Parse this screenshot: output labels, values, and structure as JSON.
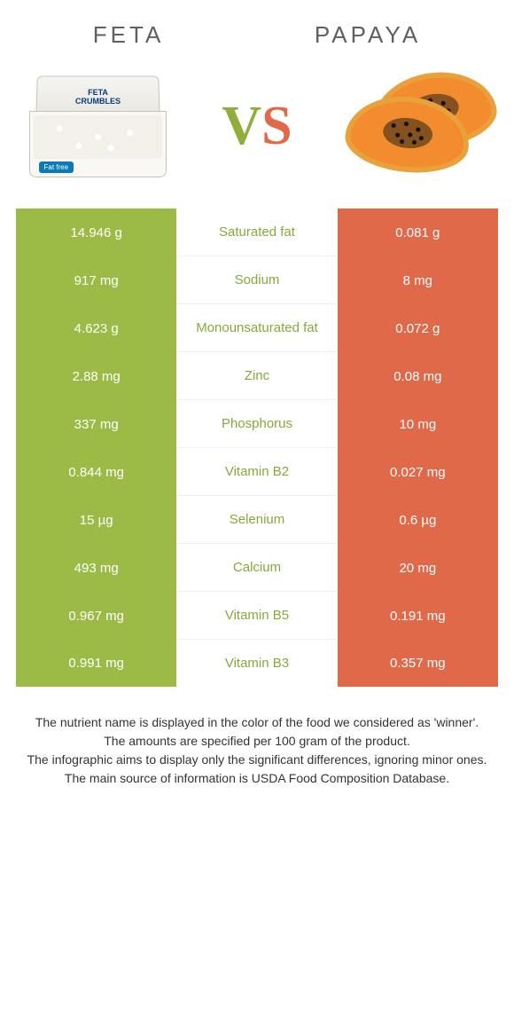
{
  "colors": {
    "left_bg": "#9bbb46",
    "right_bg": "#e0694a",
    "left_text": "#ffffff",
    "right_text": "#ffffff",
    "nutrient_left_color": "#87a93a",
    "nutrient_right_color": "#e0694a",
    "vs_v": "#8fae3b",
    "vs_s": "#e0694a",
    "header_text": "#606060",
    "footer_text": "#333333"
  },
  "header": {
    "left": "FETA",
    "right": "PAPAYA",
    "vs_v": "V",
    "vs_s": "S"
  },
  "rows": [
    {
      "left": "14.946 g",
      "nutrient": "Saturated fat",
      "right": "0.081 g",
      "winner": "left"
    },
    {
      "left": "917 mg",
      "nutrient": "Sodium",
      "right": "8 mg",
      "winner": "left"
    },
    {
      "left": "4.623 g",
      "nutrient": "Monounsaturated fat",
      "right": "0.072 g",
      "winner": "left"
    },
    {
      "left": "2.88 mg",
      "nutrient": "Zinc",
      "right": "0.08 mg",
      "winner": "left"
    },
    {
      "left": "337 mg",
      "nutrient": "Phosphorus",
      "right": "10 mg",
      "winner": "left"
    },
    {
      "left": "0.844 mg",
      "nutrient": "Vitamin B2",
      "right": "0.027 mg",
      "winner": "left"
    },
    {
      "left": "15 µg",
      "nutrient": "Selenium",
      "right": "0.6 µg",
      "winner": "left"
    },
    {
      "left": "493 mg",
      "nutrient": "Calcium",
      "right": "20 mg",
      "winner": "left"
    },
    {
      "left": "0.967 mg",
      "nutrient": "Vitamin B5",
      "right": "0.191 mg",
      "winner": "left"
    },
    {
      "left": "0.991 mg",
      "nutrient": "Vitamin B3",
      "right": "0.357 mg",
      "winner": "left"
    }
  ],
  "footer": {
    "line1": "The nutrient name is displayed in the color of the food we considered as 'winner'.",
    "line2": "The amounts are specified per 100 gram of the product.",
    "line3": "The infographic aims to display only the significant differences, ignoring minor ones.",
    "line4": "The main source of information is USDA Food Composition Database."
  }
}
